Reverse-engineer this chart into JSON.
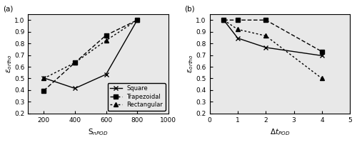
{
  "panel_a": {
    "xlabel": "S$_{nPOD}$",
    "ylabel": "$\\varepsilon_{ortho}$",
    "label": "(a)",
    "xlim": [
      100,
      1000
    ],
    "ylim": [
      0.2,
      1.05
    ],
    "xticks": [
      200,
      400,
      600,
      800,
      1000
    ],
    "yticks": [
      0.2,
      0.3,
      0.4,
      0.5,
      0.6,
      0.7,
      0.8,
      0.9,
      1.0
    ],
    "series": [
      {
        "label": "Square",
        "x": [
          200,
          400,
          600,
          800
        ],
        "y": [
          0.505,
          0.415,
          0.535,
          1.0
        ],
        "linestyle": "-",
        "marker": "x",
        "dashes": null
      },
      {
        "label": "Trapezoidal",
        "x": [
          200,
          400,
          600,
          800
        ],
        "y": [
          0.395,
          0.635,
          0.87,
          1.0
        ],
        "linestyle": "--",
        "marker": "s",
        "dashes": [
          4,
          2
        ]
      },
      {
        "label": "Rectangular",
        "x": [
          200,
          400,
          600,
          800
        ],
        "y": [
          0.5,
          0.635,
          0.825,
          1.0
        ],
        "linestyle": "--",
        "marker": "^",
        "dashes": [
          2,
          2
        ]
      }
    ],
    "legend_loc": "lower right"
  },
  "panel_b": {
    "xlabel": "$\\Delta t_{POD}$",
    "ylabel": "$\\varepsilon_{ortho}$",
    "label": "(b)",
    "xlim": [
      0,
      5
    ],
    "ylim": [
      0.2,
      1.05
    ],
    "xticks": [
      0,
      1,
      2,
      3,
      4,
      5
    ],
    "yticks": [
      0.2,
      0.3,
      0.4,
      0.5,
      0.6,
      0.7,
      0.8,
      0.9,
      1.0
    ],
    "series": [
      {
        "label": "Square",
        "x": [
          0.5,
          1.0,
          2.0,
          4.0
        ],
        "y": [
          1.0,
          0.845,
          0.765,
          0.695
        ],
        "linestyle": "-",
        "marker": "x",
        "dashes": null
      },
      {
        "label": "Trapezoidal",
        "x": [
          0.5,
          1.0,
          2.0,
          4.0
        ],
        "y": [
          1.0,
          1.0,
          1.0,
          0.73
        ],
        "linestyle": "--",
        "marker": "s",
        "dashes": [
          4,
          2
        ]
      },
      {
        "label": "Rectangular",
        "x": [
          0.5,
          1.0,
          2.0,
          4.0
        ],
        "y": [
          1.0,
          0.92,
          0.865,
          0.5
        ],
        "linestyle": "--",
        "marker": "^",
        "dashes": [
          2,
          2
        ]
      }
    ]
  },
  "color": "black",
  "markersize": 4,
  "markerfacecolor": "black",
  "linewidth": 1.0,
  "legend_fontsize": 6.0,
  "label_fontsize": 7.5,
  "tick_fontsize": 6.5,
  "bg_color": "#e8e8e8"
}
